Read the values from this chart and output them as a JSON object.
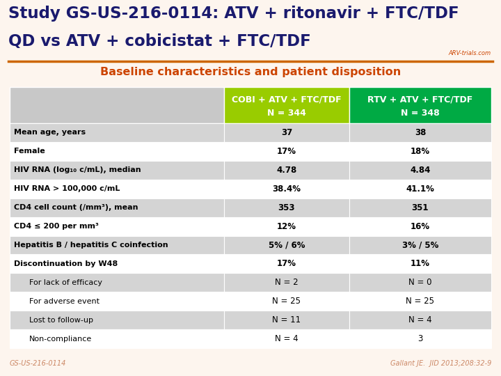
{
  "title_line1": "Study GS-US-216-0114: ATV + ritonavir + FTC/TDF",
  "title_line2": "QD vs ATV + cobicistat + FTC/TDF",
  "subtitle": "Baseline characteristics and patient disposition",
  "col1_header_line1": "COBI + ATV + FTC/TDF",
  "col1_header_line2": "N = 344",
  "col2_header_line1": "RTV + ATV + FTC/TDF",
  "col2_header_line2": "N = 348",
  "col1_bg": "#99cc00",
  "col2_bg": "#00aa44",
  "header_text_color": "#ffffff",
  "title_color": "#1a1a6e",
  "subtitle_color": "#cc4400",
  "row_label_color": "#000000",
  "row_data_color": "#000000",
  "rows": [
    {
      "label": "Mean age, years",
      "col1": "37",
      "col2": "38",
      "bold": true,
      "indent": false
    },
    {
      "label": "Female",
      "col1": "17%",
      "col2": "18%",
      "bold": true,
      "indent": false
    },
    {
      "label": "HIV RNA (log₁₀ c/mL), median",
      "col1": "4.78",
      "col2": "4.84",
      "bold": true,
      "indent": false
    },
    {
      "label": "HIV RNA > 100,000 c/mL",
      "col1": "38.4%",
      "col2": "41.1%",
      "bold": true,
      "indent": false
    },
    {
      "label": "CD4 cell count (/mm³), mean",
      "col1": "353",
      "col2": "351",
      "bold": true,
      "indent": false
    },
    {
      "label": "CD4 ≤ 200 per mm³",
      "col1": "12%",
      "col2": "16%",
      "bold": true,
      "indent": false
    },
    {
      "label": "Hepatitis B / hepatitis C coinfection",
      "col1": "5% / 6%",
      "col2": "3% / 5%",
      "bold": true,
      "indent": false
    },
    {
      "label": "Discontinuation by W48",
      "col1": "17%",
      "col2": "11%",
      "bold": true,
      "indent": false
    },
    {
      "label": "For lack of efficacy",
      "col1": "N = 2",
      "col2": "N = 0",
      "bold": false,
      "indent": true
    },
    {
      "label": "For adverse event",
      "col1": "N = 25",
      "col2": "N = 25",
      "bold": false,
      "indent": true
    },
    {
      "label": "Lost to follow-up",
      "col1": "N = 11",
      "col2": "N = 4",
      "bold": false,
      "indent": true
    },
    {
      "label": "Non-compliance",
      "col1": "N = 4",
      "col2": "3",
      "bold": false,
      "indent": true
    }
  ],
  "bg_color": "#fdf5ee",
  "row_bg_odd": "#d4d4d4",
  "row_bg_even": "#ffffff",
  "header_left_bg": "#c8c8c8",
  "footer_left": "GS-US-216-0114",
  "footer_right": "Gallant JE.  JID 2013;208:32-9",
  "footer_color": "#cc8866",
  "orange_line_color": "#cc6600",
  "arv_text_color": "#cc4400"
}
